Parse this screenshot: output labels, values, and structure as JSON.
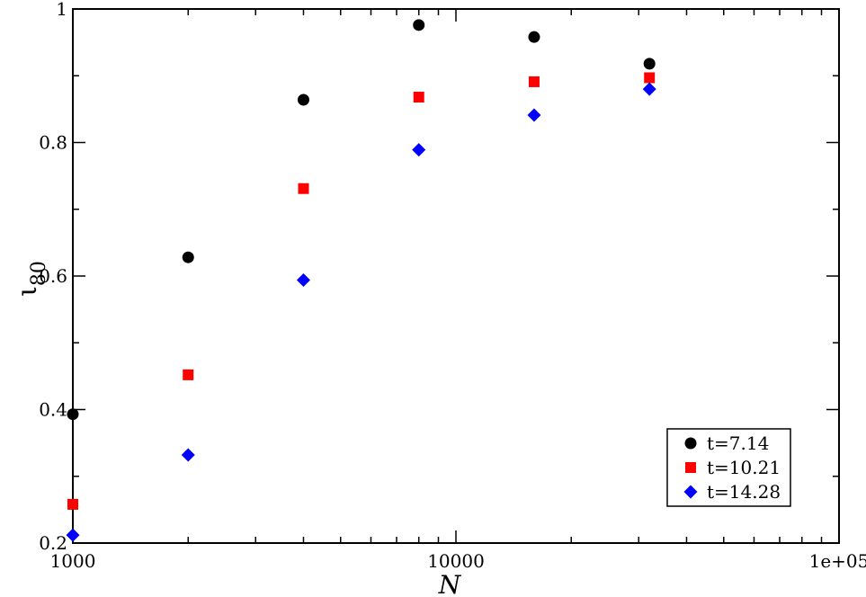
{
  "chart_data": {
    "type": "scatter",
    "x_scale": "log",
    "xlim": [
      1000,
      100000
    ],
    "ylim": [
      0.2,
      1.0
    ],
    "xlabel": "N",
    "ylabel": "ι",
    "ylabel_subscript": "80",
    "x_tick_labels": [
      {
        "value": 1000,
        "label": "1000"
      },
      {
        "value": 10000,
        "label": "10000"
      },
      {
        "value": 100000,
        "label": "1e+05"
      }
    ],
    "y_tick_labels": [
      {
        "value": 0.2,
        "label": "0.2"
      },
      {
        "value": 0.4,
        "label": "0.4"
      },
      {
        "value": 0.6,
        "label": "0.6"
      },
      {
        "value": 0.8,
        "label": "0.8"
      },
      {
        "value": 1.0,
        "label": "1"
      }
    ],
    "y_minor_ticks": [
      0.3,
      0.5,
      0.7,
      0.9
    ],
    "grid": false,
    "legend_position": "bottom-right",
    "series": [
      {
        "name": "t=7.14",
        "marker": "circle",
        "color": "#000000",
        "points": [
          {
            "x": 1000,
            "y": 0.393
          },
          {
            "x": 2000,
            "y": 0.628
          },
          {
            "x": 4000,
            "y": 0.864
          },
          {
            "x": 8000,
            "y": 0.976
          },
          {
            "x": 16000,
            "y": 0.958
          },
          {
            "x": 32000,
            "y": 0.918
          }
        ]
      },
      {
        "name": "t=10.21",
        "marker": "square",
        "color": "#ff0000",
        "points": [
          {
            "x": 1000,
            "y": 0.258
          },
          {
            "x": 2000,
            "y": 0.452
          },
          {
            "x": 4000,
            "y": 0.731
          },
          {
            "x": 8000,
            "y": 0.868
          },
          {
            "x": 16000,
            "y": 0.891
          },
          {
            "x": 32000,
            "y": 0.897
          }
        ]
      },
      {
        "name": "t=14.28",
        "marker": "diamond",
        "color": "#0000ff",
        "points": [
          {
            "x": 1000,
            "y": 0.212
          },
          {
            "x": 2000,
            "y": 0.332
          },
          {
            "x": 4000,
            "y": 0.594
          },
          {
            "x": 8000,
            "y": 0.789
          },
          {
            "x": 16000,
            "y": 0.841
          },
          {
            "x": 32000,
            "y": 0.88
          }
        ]
      }
    ]
  }
}
